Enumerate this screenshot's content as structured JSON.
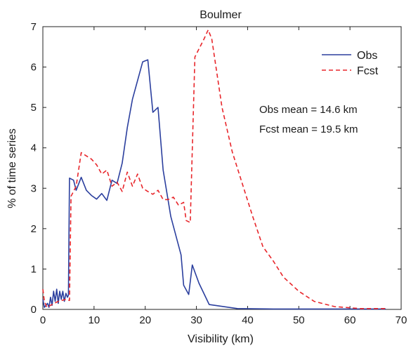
{
  "chart_data": {
    "type": "line",
    "title": "Boulmer",
    "xlabel": "Visibility (km)",
    "ylabel": "% of time series",
    "xlim": [
      0,
      70
    ],
    "ylim": [
      0,
      7
    ],
    "x_ticks": [
      0,
      10,
      20,
      30,
      40,
      50,
      60,
      70
    ],
    "y_ticks": [
      0,
      1,
      2,
      3,
      4,
      5,
      6,
      7
    ],
    "grid": false,
    "legend_position": "top-right",
    "series": [
      {
        "name": "Obs",
        "color": "#2b3f9e",
        "line_style": "solid",
        "points": [
          [
            0,
            0.25
          ],
          [
            0.3,
            0.05
          ],
          [
            0.6,
            0.1
          ],
          [
            0.9,
            0.15
          ],
          [
            1.2,
            0.05
          ],
          [
            1.5,
            0.3
          ],
          [
            1.8,
            0.1
          ],
          [
            2.1,
            0.45
          ],
          [
            2.4,
            0.2
          ],
          [
            2.7,
            0.5
          ],
          [
            3.0,
            0.15
          ],
          [
            3.3,
            0.45
          ],
          [
            3.6,
            0.25
          ],
          [
            3.9,
            0.45
          ],
          [
            4.2,
            0.2
          ],
          [
            4.5,
            0.4
          ],
          [
            4.8,
            0.3
          ],
          [
            5.0,
            0.35
          ],
          [
            5.2,
            3.25
          ],
          [
            6.0,
            3.2
          ],
          [
            6.5,
            2.95
          ],
          [
            7.5,
            3.27
          ],
          [
            8.5,
            2.95
          ],
          [
            9.5,
            2.82
          ],
          [
            10.5,
            2.73
          ],
          [
            11.5,
            2.87
          ],
          [
            12.5,
            2.7
          ],
          [
            13.5,
            3.2
          ],
          [
            14.5,
            3.12
          ],
          [
            15.5,
            3.62
          ],
          [
            16.5,
            4.5
          ],
          [
            17.5,
            5.2
          ],
          [
            19.5,
            6.13
          ],
          [
            20.5,
            6.18
          ],
          [
            21.5,
            4.88
          ],
          [
            22.5,
            5.0
          ],
          [
            23.5,
            3.45
          ],
          [
            25,
            2.3
          ],
          [
            27,
            1.35
          ],
          [
            27.5,
            0.6
          ],
          [
            28.5,
            0.37
          ],
          [
            29.2,
            1.1
          ],
          [
            30.5,
            0.65
          ],
          [
            32.5,
            0.12
          ],
          [
            38,
            0.02
          ],
          [
            45,
            0.01
          ],
          [
            67,
            0.01
          ]
        ]
      },
      {
        "name": "Fcst",
        "color": "#e8262b",
        "line_style": "dashed",
        "points": [
          [
            0,
            0.5
          ],
          [
            0.3,
            0.2
          ],
          [
            0.8,
            0.05
          ],
          [
            1.5,
            0.1
          ],
          [
            3,
            0.2
          ],
          [
            4.5,
            0.25
          ],
          [
            5.2,
            0.22
          ],
          [
            5.5,
            2.8
          ],
          [
            6.5,
            3.05
          ],
          [
            7.5,
            3.88
          ],
          [
            8.5,
            3.8
          ],
          [
            9.5,
            3.72
          ],
          [
            10.5,
            3.58
          ],
          [
            11.5,
            3.35
          ],
          [
            12.5,
            3.45
          ],
          [
            13.5,
            3.05
          ],
          [
            14.5,
            3.15
          ],
          [
            15.5,
            2.92
          ],
          [
            16.5,
            3.4
          ],
          [
            17.5,
            3.05
          ],
          [
            18.5,
            3.35
          ],
          [
            19.5,
            3.0
          ],
          [
            20.5,
            2.92
          ],
          [
            21.5,
            2.85
          ],
          [
            22.5,
            2.95
          ],
          [
            23.5,
            2.72
          ],
          [
            24.5,
            2.72
          ],
          [
            25.5,
            2.78
          ],
          [
            26.5,
            2.58
          ],
          [
            27.5,
            2.65
          ],
          [
            28.0,
            2.2
          ],
          [
            28.8,
            2.15
          ],
          [
            29.7,
            6.25
          ],
          [
            31.5,
            6.7
          ],
          [
            32.3,
            6.92
          ],
          [
            33,
            6.7
          ],
          [
            35,
            5.0
          ],
          [
            37,
            3.9
          ],
          [
            39,
            3.1
          ],
          [
            41,
            2.3
          ],
          [
            43,
            1.55
          ],
          [
            45,
            1.2
          ],
          [
            47,
            0.8
          ],
          [
            50,
            0.45
          ],
          [
            53,
            0.2
          ],
          [
            57,
            0.07
          ],
          [
            62,
            0.02
          ],
          [
            67,
            0.02
          ]
        ]
      }
    ],
    "annotations": [
      "Obs mean = 14.6 km",
      "Fcst mean = 19.5 km"
    ]
  }
}
